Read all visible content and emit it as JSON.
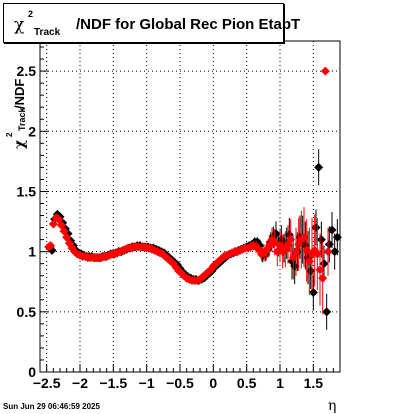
{
  "title": {
    "chi": "χ",
    "sup": "2",
    "sub": "Track",
    "rest": "/NDF for Global Rec Pion EtapT"
  },
  "ylabel": {
    "chi": "χ",
    "sup": "2",
    "sub": "Track",
    "rest": "/NDF"
  },
  "xlabel": "η",
  "datestamp": "Sun Jun 29 06:46:59 2025",
  "colors": {
    "series_black": "#000000",
    "series_red": "#ff0000",
    "grid": "#000000"
  },
  "chart_data": {
    "type": "scatter",
    "title": "χ²Track/NDF for Global Rec Pion EtapT",
    "xlabel": "η",
    "ylabel": "χ²Track/NDF",
    "xlim": [
      -2.6,
      1.9
    ],
    "ylim": [
      0,
      2.75
    ],
    "grid": true,
    "x_ticks": [
      -2.5,
      -2,
      -1.5,
      -1,
      -0.5,
      0,
      0.5,
      1,
      1.5
    ],
    "x_tick_labels": [
      "−2.5",
      "−2",
      "−1.5",
      "−1",
      "−0.5",
      "0",
      "0.5",
      "1",
      "1.5"
    ],
    "y_ticks": [
      0,
      0.5,
      1,
      1.5,
      2,
      2.5
    ],
    "y_tick_labels": [
      "0",
      "0.5",
      "1",
      "1.5",
      "2",
      "2.5"
    ],
    "series": [
      {
        "color": "#000000",
        "x": [
          -2.45,
          -2.42,
          -2.38,
          -2.34,
          -2.3,
          -2.26,
          -2.22,
          -2.18,
          -2.14,
          -2.1,
          -2.06,
          -2.02,
          -1.98,
          -1.94,
          -1.9,
          -1.86,
          -1.82,
          -1.78,
          -1.74,
          -1.7,
          -1.66,
          -1.62,
          -1.58,
          -1.54,
          -1.5,
          -1.46,
          -1.42,
          -1.38,
          -1.34,
          -1.3,
          -1.26,
          -1.22,
          -1.18,
          -1.14,
          -1.1,
          -1.06,
          -1.02,
          -0.98,
          -0.94,
          -0.9,
          -0.86,
          -0.82,
          -0.78,
          -0.74,
          -0.7,
          -0.66,
          -0.62,
          -0.58,
          -0.54,
          -0.5,
          -0.46,
          -0.42,
          -0.38,
          -0.34,
          -0.3,
          -0.26,
          -0.22,
          -0.18,
          -0.14,
          -0.1,
          -0.06,
          -0.02,
          0.02,
          0.06,
          0.1,
          0.14,
          0.18,
          0.22,
          0.26,
          0.3,
          0.34,
          0.38,
          0.42,
          0.46,
          0.5,
          0.54,
          0.58,
          0.62,
          0.66,
          0.7,
          0.74,
          0.78,
          0.82,
          0.86,
          0.9,
          0.94,
          0.98,
          1.02,
          1.06,
          1.1,
          1.14,
          1.18,
          1.22,
          1.26,
          1.3,
          1.34,
          1.38,
          1.42,
          1.46,
          1.5,
          1.54,
          1.58,
          1.62,
          1.66,
          1.7,
          1.74,
          1.78,
          1.82,
          1.86
        ],
        "y": [
          1.03,
          1.01,
          1.27,
          1.31,
          1.29,
          1.24,
          1.19,
          1.15,
          1.09,
          1.05,
          1.01,
          0.98,
          0.98,
          0.97,
          0.96,
          0.96,
          0.96,
          0.95,
          0.95,
          0.95,
          0.96,
          0.96,
          0.97,
          0.98,
          0.98,
          0.99,
          1.0,
          1.0,
          1.01,
          1.02,
          1.03,
          1.04,
          1.04,
          1.05,
          1.05,
          1.04,
          1.04,
          1.04,
          1.03,
          1.03,
          1.02,
          1.01,
          1.0,
          0.99,
          0.97,
          0.95,
          0.93,
          0.91,
          0.89,
          0.86,
          0.83,
          0.81,
          0.79,
          0.78,
          0.77,
          0.77,
          0.76,
          0.77,
          0.78,
          0.8,
          0.82,
          0.84,
          0.87,
          0.89,
          0.91,
          0.93,
          0.95,
          0.97,
          0.98,
          0.99,
          1.0,
          1.01,
          1.02,
          1.03,
          1.04,
          1.05,
          1.06,
          1.08,
          1.08,
          1.05,
          0.97,
          0.98,
          1.02,
          1.08,
          1.12,
          1.15,
          1.06,
          1.1,
          1.03,
          1.07,
          1.14,
          0.92,
          0.88,
          1.0,
          1.12,
          1.1,
          1.05,
          0.95,
          0.84,
          0.66,
          1.2,
          1.7,
          1.1,
          0.9,
          0.5,
          1.06,
          1.18,
          1.0,
          1.12
        ],
        "y_err": [
          0.02,
          0.02,
          0.02,
          0.02,
          0.02,
          0.02,
          0.02,
          0.02,
          0.02,
          0.02,
          0.02,
          0.02,
          0.02,
          0.02,
          0.02,
          0.02,
          0.02,
          0.02,
          0.02,
          0.02,
          0.02,
          0.02,
          0.02,
          0.02,
          0.02,
          0.02,
          0.02,
          0.02,
          0.02,
          0.02,
          0.02,
          0.02,
          0.02,
          0.02,
          0.02,
          0.02,
          0.02,
          0.02,
          0.02,
          0.02,
          0.02,
          0.02,
          0.02,
          0.02,
          0.02,
          0.02,
          0.02,
          0.02,
          0.02,
          0.02,
          0.02,
          0.02,
          0.02,
          0.02,
          0.02,
          0.02,
          0.02,
          0.02,
          0.02,
          0.02,
          0.02,
          0.02,
          0.02,
          0.02,
          0.02,
          0.02,
          0.02,
          0.02,
          0.02,
          0.02,
          0.02,
          0.02,
          0.02,
          0.02,
          0.02,
          0.03,
          0.03,
          0.04,
          0.04,
          0.05,
          0.06,
          0.06,
          0.07,
          0.08,
          0.09,
          0.1,
          0.1,
          0.12,
          0.12,
          0.13,
          0.14,
          0.15,
          0.15,
          0.16,
          0.18,
          0.2,
          0.2,
          0.22,
          0.15,
          0.15,
          0.15,
          0.15,
          0.15,
          0.15,
          0.15,
          0.15,
          0.15,
          0.15,
          0.15
        ]
      },
      {
        "color": "#ff0000",
        "x": [
          -2.47,
          -2.44,
          -2.4,
          -2.36,
          -2.32,
          -2.28,
          -2.24,
          -2.2,
          -2.16,
          -2.12,
          -2.08,
          -2.04,
          -2.0,
          -1.96,
          -1.92,
          -1.88,
          -1.84,
          -1.8,
          -1.76,
          -1.72,
          -1.68,
          -1.64,
          -1.6,
          -1.56,
          -1.52,
          -1.48,
          -1.44,
          -1.4,
          -1.36,
          -1.32,
          -1.28,
          -1.24,
          -1.2,
          -1.16,
          -1.12,
          -1.08,
          -1.04,
          -1.0,
          -0.96,
          -0.92,
          -0.88,
          -0.84,
          -0.8,
          -0.76,
          -0.72,
          -0.68,
          -0.64,
          -0.6,
          -0.56,
          -0.52,
          -0.48,
          -0.44,
          -0.4,
          -0.36,
          -0.32,
          -0.28,
          -0.24,
          -0.2,
          -0.16,
          -0.12,
          -0.08,
          -0.04,
          0.0,
          0.04,
          0.08,
          0.12,
          0.16,
          0.2,
          0.24,
          0.28,
          0.32,
          0.36,
          0.4,
          0.44,
          0.48,
          0.52,
          0.56,
          0.6,
          0.64,
          0.68,
          0.72,
          0.76,
          0.8,
          0.84,
          0.88,
          0.92,
          0.96,
          1.0,
          1.04,
          1.08,
          1.12,
          1.16,
          1.2,
          1.24,
          1.28,
          1.32,
          1.36,
          1.4,
          1.44,
          1.48,
          1.52,
          1.56,
          1.6,
          1.64,
          1.68,
          1.72
        ],
        "y": [
          1.04,
          1.05,
          1.23,
          1.28,
          1.27,
          1.22,
          1.17,
          1.12,
          1.07,
          1.03,
          1.0,
          0.98,
          0.97,
          0.96,
          0.96,
          0.95,
          0.95,
          0.95,
          0.95,
          0.95,
          0.95,
          0.96,
          0.96,
          0.97,
          0.98,
          0.98,
          0.99,
          1.0,
          1.01,
          1.02,
          1.03,
          1.03,
          1.04,
          1.04,
          1.04,
          1.04,
          1.04,
          1.03,
          1.03,
          1.02,
          1.01,
          1.0,
          0.99,
          0.98,
          0.96,
          0.94,
          0.92,
          0.9,
          0.87,
          0.84,
          0.82,
          0.8,
          0.78,
          0.77,
          0.76,
          0.76,
          0.76,
          0.77,
          0.79,
          0.81,
          0.83,
          0.85,
          0.88,
          0.9,
          0.92,
          0.94,
          0.96,
          0.97,
          0.98,
          0.99,
          1.0,
          1.0,
          1.01,
          1.02,
          1.03,
          1.03,
          1.04,
          1.05,
          1.04,
          1.02,
          0.98,
          0.99,
          1.01,
          1.05,
          1.1,
          1.08,
          1.0,
          1.05,
          1.0,
          1.02,
          1.06,
          1.1,
          0.95,
          1.0,
          1.06,
          1.1,
          1.12,
          1.01,
          0.92,
          0.98,
          1.01,
          0.98,
          0.85,
          0.78,
          2.5,
          1.0
        ],
        "y_err": [
          0.02,
          0.02,
          0.02,
          0.02,
          0.02,
          0.02,
          0.02,
          0.02,
          0.02,
          0.02,
          0.02,
          0.02,
          0.02,
          0.02,
          0.02,
          0.02,
          0.02,
          0.02,
          0.02,
          0.02,
          0.02,
          0.02,
          0.02,
          0.02,
          0.02,
          0.02,
          0.02,
          0.02,
          0.02,
          0.02,
          0.02,
          0.02,
          0.02,
          0.02,
          0.02,
          0.02,
          0.02,
          0.02,
          0.02,
          0.02,
          0.02,
          0.02,
          0.02,
          0.02,
          0.02,
          0.02,
          0.02,
          0.02,
          0.02,
          0.02,
          0.02,
          0.02,
          0.02,
          0.02,
          0.02,
          0.02,
          0.02,
          0.02,
          0.02,
          0.02,
          0.02,
          0.02,
          0.02,
          0.02,
          0.02,
          0.02,
          0.02,
          0.02,
          0.02,
          0.02,
          0.02,
          0.02,
          0.02,
          0.02,
          0.03,
          0.03,
          0.04,
          0.04,
          0.05,
          0.05,
          0.06,
          0.07,
          0.08,
          0.09,
          0.1,
          0.11,
          0.12,
          0.13,
          0.14,
          0.15,
          0.16,
          0.17,
          0.18,
          0.2,
          0.22,
          0.24,
          0.25,
          0.26,
          0.28,
          0.3,
          0.3,
          0.3,
          0.3,
          0.3,
          0.02,
          0.2
        ]
      }
    ]
  }
}
